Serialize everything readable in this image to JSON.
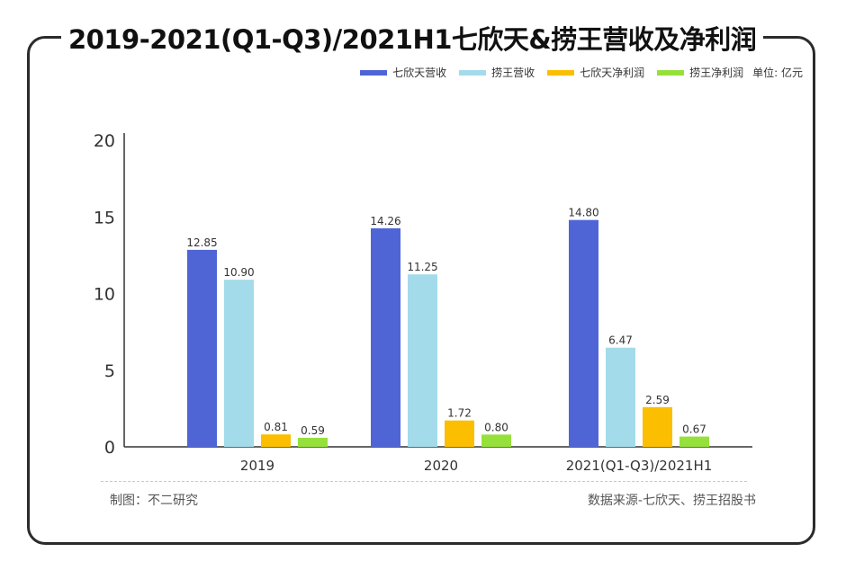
{
  "title": "2019-2021(Q1-Q3)/2021H1七欣天&捞王营收及净利润",
  "footer": {
    "left": "制图：不二研究",
    "right": "数据来源-七欣天、捞王招股书"
  },
  "chart_data": {
    "type": "bar",
    "title": "2019-2021(Q1-Q3)/2021H1七欣天&捞王营收及净利润",
    "categories": [
      "2019",
      "2020",
      "2021(Q1-Q3)/2021H1"
    ],
    "series": [
      {
        "name": "七欣天营收",
        "color": "#4f65d6",
        "values": [
          12.85,
          14.26,
          14.8
        ]
      },
      {
        "name": "捞王营收",
        "color": "#a4dbea",
        "values": [
          10.9,
          11.25,
          6.47
        ]
      },
      {
        "name": "七欣天净利润",
        "color": "#fbbe00",
        "values": [
          0.81,
          1.72,
          2.59
        ]
      },
      {
        "name": "捞王净利润",
        "color": "#96e03c",
        "values": [
          0.59,
          0.8,
          0.67
        ]
      }
    ],
    "value_labels": [
      [
        "12.85",
        "14.26",
        "14.80"
      ],
      [
        "10.90",
        "11.25",
        "6.47"
      ],
      [
        "0.81",
        "1.72",
        "2.59"
      ],
      [
        "0.59",
        "0.80",
        "0.67"
      ]
    ],
    "unit_label": "单位: 亿元",
    "ylim": [
      0,
      20
    ],
    "yticks": [
      0,
      5,
      10,
      15,
      20
    ],
    "grid": false,
    "legend_position": "top-right"
  }
}
